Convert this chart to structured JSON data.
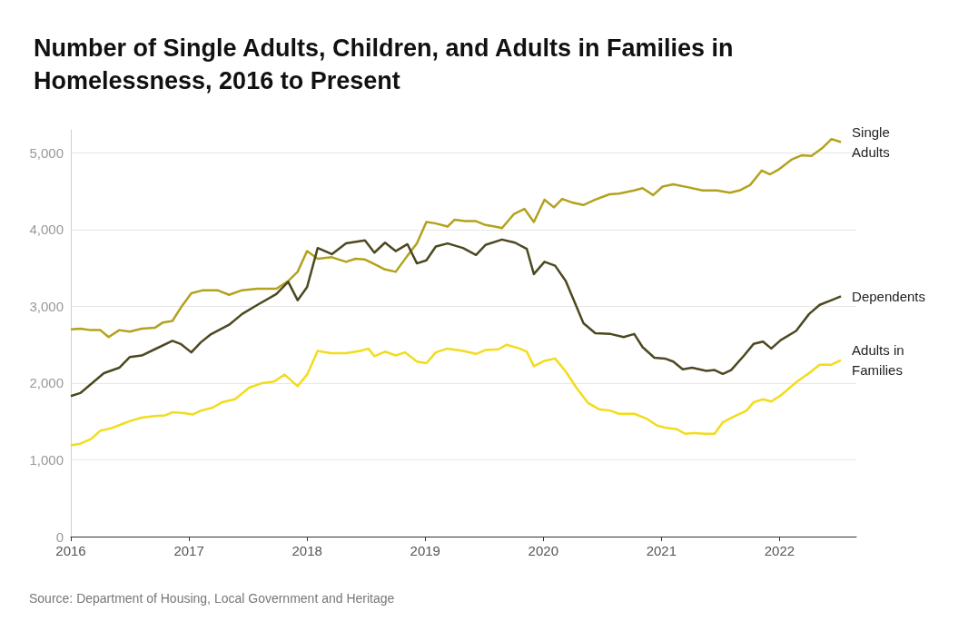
{
  "chart_data": {
    "type": "line",
    "title": "Number of Single Adults, Children, and Adults in Families in Homelessness, 2016 to Present",
    "xlim": [
      2016,
      2022.65
    ],
    "xticks": [
      2016,
      2017,
      2018,
      2019,
      2020,
      2021,
      2022
    ],
    "ylim": [
      0,
      5300
    ],
    "yticks": [
      0,
      {
        "value": 1000,
        "label": "1,000"
      },
      {
        "value": 2000,
        "label": "2,000"
      },
      {
        "value": 3000,
        "label": "3,000"
      },
      {
        "value": 4000,
        "label": "4,000"
      },
      {
        "value": 5000,
        "label": "5,000"
      }
    ],
    "grid": "y",
    "legend": false,
    "marker": "none",
    "line_style": "solid",
    "annotations": [
      "Source: Department of Housing, Local Government and Heritage"
    ],
    "series": [
      {
        "name": "Single Adults",
        "color": "#b3a21e",
        "x": [
          2016,
          2016.08,
          2016.17,
          2016.25,
          2016.32,
          2016.41,
          2016.5,
          2016.6,
          2016.71,
          2016.78,
          2016.86,
          2016.93,
          2017.02,
          2017.12,
          2017.24,
          2017.34,
          2017.45,
          2017.58,
          2017.74,
          2017.84,
          2017.92,
          2018,
          2018.09,
          2018.21,
          2018.33,
          2018.41,
          2018.49,
          2018.57,
          2018.66,
          2018.75,
          2018.85,
          2018.93,
          2019.01,
          2019.09,
          2019.19,
          2019.25,
          2019.34,
          2019.43,
          2019.51,
          2019.59,
          2019.65,
          2019.75,
          2019.84,
          2019.92,
          2020.01,
          2020.09,
          2020.16,
          2020.25,
          2020.34,
          2020.44,
          2020.56,
          2020.64,
          2020.77,
          2020.84,
          2020.93,
          2021.01,
          2021.1,
          2021.23,
          2021.35,
          2021.47,
          2021.58,
          2021.66,
          2021.75,
          2021.85,
          2021.92,
          2021.99,
          2022.1,
          2022.19,
          2022.27,
          2022.36,
          2022.44,
          2022.52
        ],
        "values": [
          2700,
          2710,
          2690,
          2690,
          2600,
          2690,
          2670,
          2710,
          2720,
          2790,
          2810,
          2980,
          3170,
          3210,
          3210,
          3150,
          3210,
          3230,
          3230,
          3330,
          3450,
          3720,
          3620,
          3640,
          3580,
          3620,
          3610,
          3550,
          3480,
          3450,
          3660,
          3820,
          4100,
          4080,
          4040,
          4130,
          4110,
          4110,
          4060,
          4040,
          4020,
          4200,
          4270,
          4100,
          4390,
          4290,
          4400,
          4350,
          4320,
          4390,
          4460,
          4470,
          4510,
          4540,
          4450,
          4560,
          4590,
          4550,
          4510,
          4510,
          4480,
          4510,
          4580,
          4770,
          4720,
          4780,
          4910,
          4970,
          4960,
          5060,
          5180,
          5140
        ]
      },
      {
        "name": "Dependents",
        "color": "#4d4820",
        "x": [
          2016,
          2016.08,
          2016.28,
          2016.41,
          2016.5,
          2016.6,
          2016.71,
          2016.86,
          2016.93,
          2017.02,
          2017.1,
          2017.18,
          2017.34,
          2017.45,
          2017.58,
          2017.74,
          2017.84,
          2017.92,
          2018,
          2018.09,
          2018.21,
          2018.33,
          2018.49,
          2018.57,
          2018.66,
          2018.75,
          2018.85,
          2018.93,
          2019.01,
          2019.09,
          2019.19,
          2019.32,
          2019.43,
          2019.51,
          2019.65,
          2019.76,
          2019.86,
          2019.92,
          2020.01,
          2020.1,
          2020.19,
          2020.34,
          2020.44,
          2020.57,
          2020.68,
          2020.77,
          2020.84,
          2020.94,
          2021.03,
          2021.1,
          2021.18,
          2021.26,
          2021.38,
          2021.45,
          2021.52,
          2021.59,
          2021.7,
          2021.78,
          2021.86,
          2021.93,
          2022.01,
          2022.14,
          2022.25,
          2022.34,
          2022.44,
          2022.52
        ],
        "values": [
          1830,
          1870,
          2130,
          2200,
          2340,
          2360,
          2440,
          2550,
          2510,
          2400,
          2530,
          2630,
          2760,
          2900,
          3020,
          3160,
          3320,
          3080,
          3250,
          3760,
          3680,
          3820,
          3860,
          3700,
          3830,
          3720,
          3810,
          3560,
          3600,
          3780,
          3820,
          3760,
          3670,
          3800,
          3870,
          3830,
          3750,
          3420,
          3580,
          3530,
          3330,
          2780,
          2650,
          2640,
          2600,
          2640,
          2470,
          2330,
          2320,
          2280,
          2180,
          2200,
          2160,
          2170,
          2120,
          2170,
          2360,
          2510,
          2540,
          2450,
          2560,
          2680,
          2900,
          3020,
          3080,
          3130
        ]
      },
      {
        "name": "Adults in Families",
        "color": "#f2dc1c",
        "x": [
          2016,
          2016.08,
          2016.17,
          2016.25,
          2016.34,
          2016.44,
          2016.51,
          2016.6,
          2016.71,
          2016.8,
          2016.86,
          2016.96,
          2017.03,
          2017.1,
          2017.2,
          2017.28,
          2017.39,
          2017.51,
          2017.62,
          2017.72,
          2017.81,
          2017.92,
          2018,
          2018.09,
          2018.2,
          2018.33,
          2018.45,
          2018.52,
          2018.57,
          2018.66,
          2018.75,
          2018.83,
          2018.93,
          2019.01,
          2019.09,
          2019.19,
          2019.32,
          2019.43,
          2019.51,
          2019.62,
          2019.69,
          2019.8,
          2019.86,
          2019.92,
          2020.01,
          2020.1,
          2020.19,
          2020.28,
          2020.38,
          2020.47,
          2020.57,
          2020.64,
          2020.77,
          2020.87,
          2020.96,
          2021.03,
          2021.13,
          2021.2,
          2021.28,
          2021.37,
          2021.45,
          2021.52,
          2021.62,
          2021.72,
          2021.78,
          2021.86,
          2021.93,
          2022.01,
          2022.14,
          2022.25,
          2022.34,
          2022.44,
          2022.52
        ],
        "values": [
          1190,
          1210,
          1270,
          1380,
          1410,
          1470,
          1510,
          1550,
          1570,
          1580,
          1620,
          1610,
          1590,
          1640,
          1680,
          1750,
          1790,
          1940,
          2000,
          2020,
          2110,
          1960,
          2110,
          2420,
          2390,
          2390,
          2420,
          2450,
          2350,
          2410,
          2360,
          2400,
          2280,
          2260,
          2400,
          2450,
          2420,
          2380,
          2430,
          2440,
          2500,
          2450,
          2410,
          2220,
          2290,
          2320,
          2150,
          1940,
          1740,
          1660,
          1640,
          1600,
          1600,
          1540,
          1450,
          1420,
          1400,
          1340,
          1350,
          1340,
          1340,
          1490,
          1570,
          1640,
          1750,
          1790,
          1760,
          1840,
          2010,
          2130,
          2240,
          2240,
          2300
        ]
      }
    ]
  }
}
